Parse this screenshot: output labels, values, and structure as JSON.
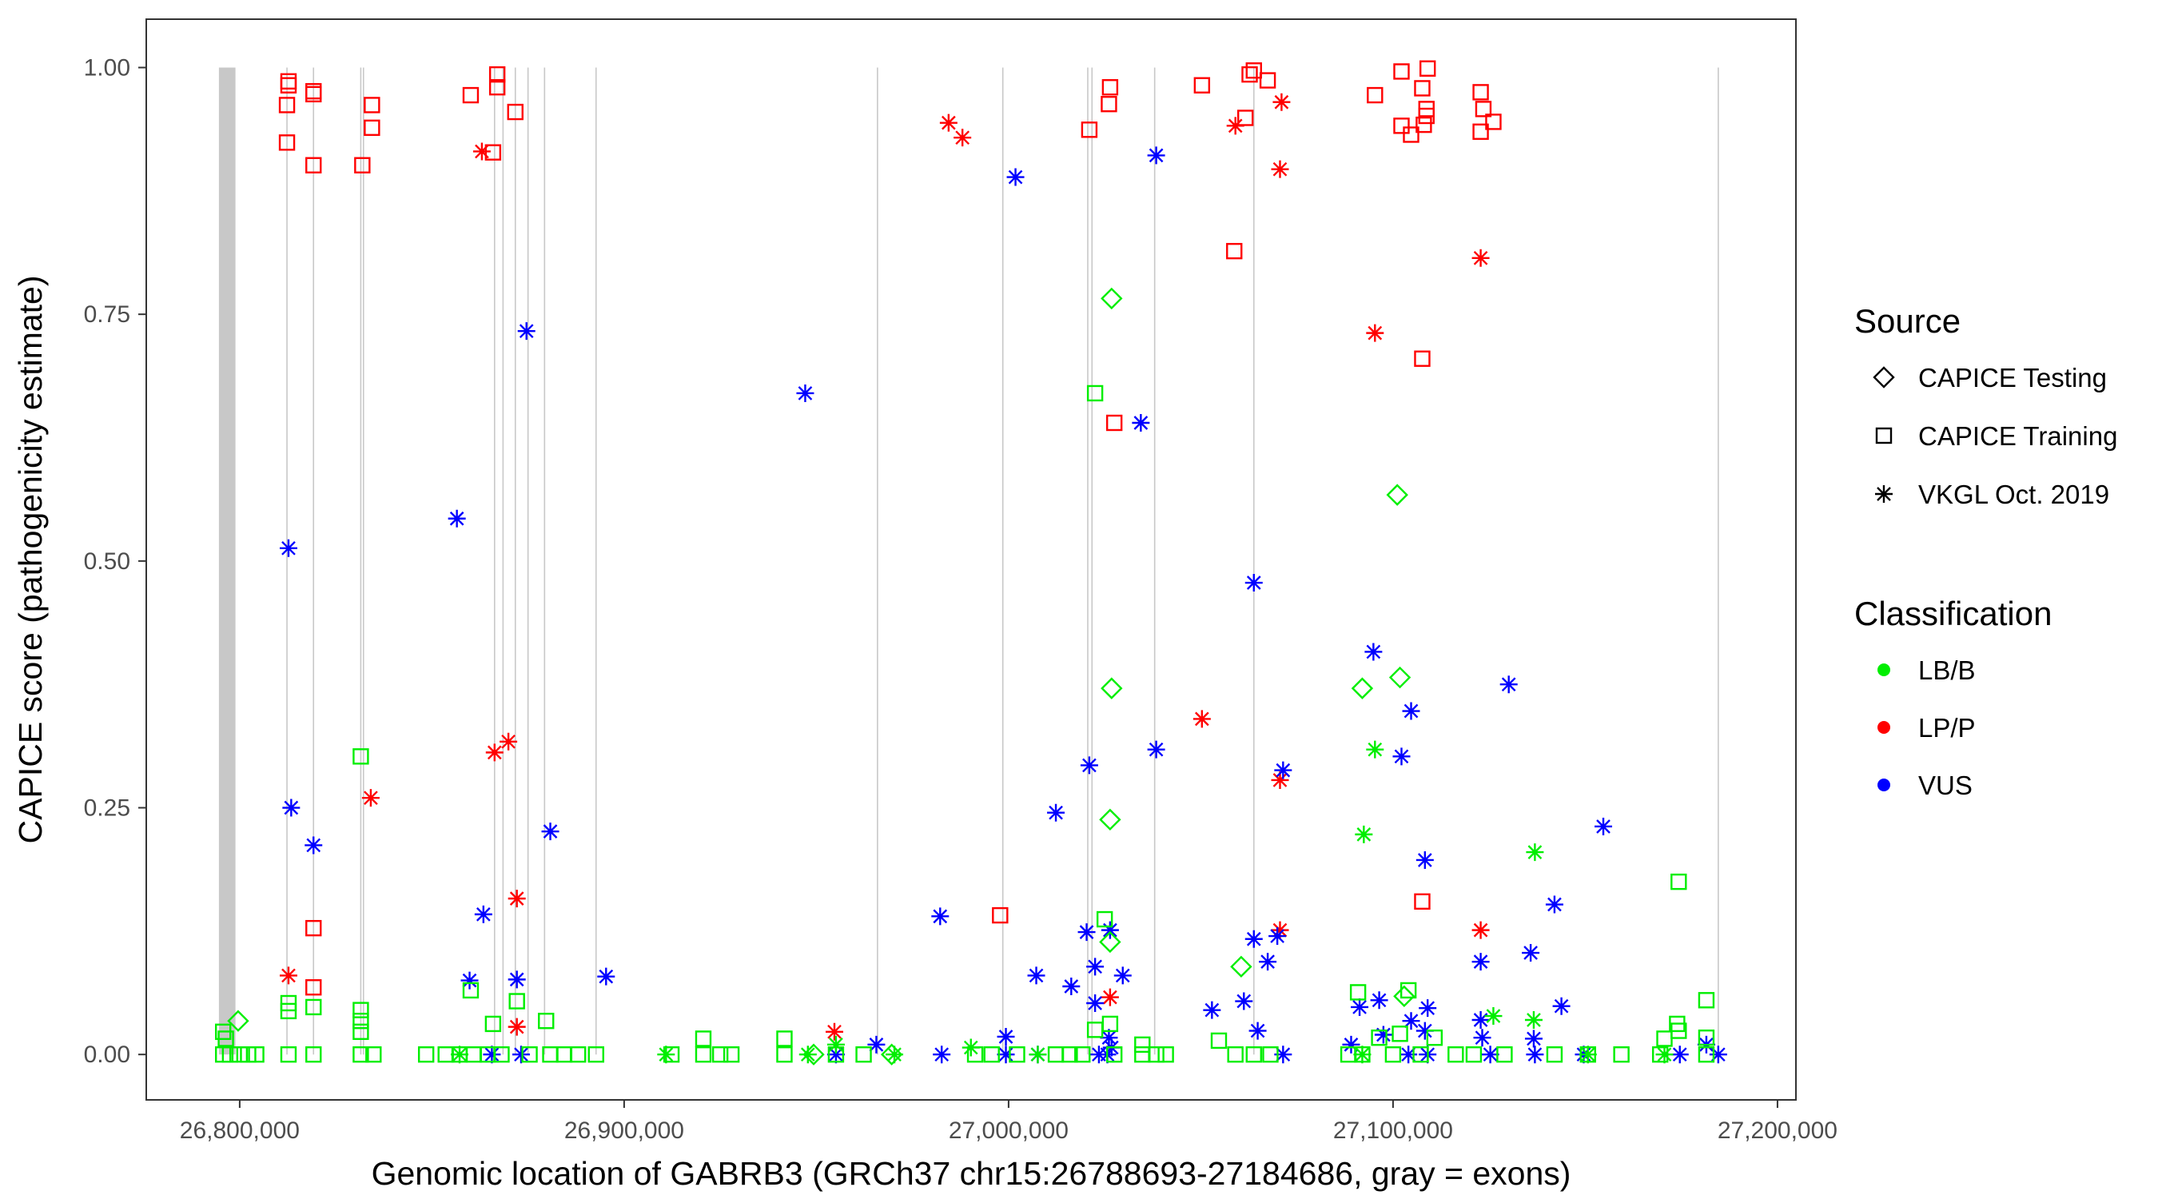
{
  "chart_data": {
    "type": "scatter",
    "title": "",
    "xlabel": "Genomic location of GABRB3 (GRCh37 chr15:26788693-27184686, gray = exons)",
    "ylabel": "CAPICE score (pathogenicity estimate)",
    "xlim": [
      26775700,
      27204800
    ],
    "ylim": [
      -0.046,
      1.049
    ],
    "x_ticks": [
      26800000,
      26900000,
      27000000,
      27100000,
      27200000
    ],
    "x_tick_labels": [
      "26,800,000",
      "26,900,000",
      "27,000,000",
      "27,100,000",
      "27,200,000"
    ],
    "y_ticks": [
      0,
      0.25,
      0.5,
      0.75,
      1.0
    ],
    "y_tick_labels": [
      "0.00",
      "0.25",
      "0.50",
      "0.75",
      "1.00"
    ],
    "grid": false,
    "legend_placement": "right",
    "legend": {
      "source_title": "Source",
      "sources": [
        {
          "label": "CAPICE Testing",
          "shape": "diamond"
        },
        {
          "label": "CAPICE Training",
          "shape": "square"
        },
        {
          "label": "VKGL Oct. 2019",
          "shape": "asterisk"
        }
      ],
      "class_title": "Classification",
      "classes": [
        {
          "label": "LB/B",
          "color": "#00ee00"
        },
        {
          "label": "LP/P",
          "color": "#ff0000"
        },
        {
          "label": "VUS",
          "color": "#0000ff"
        }
      ]
    },
    "exons": {
      "band": [
        26794600,
        26798900
      ],
      "lines": [
        26812300,
        26819200,
        26831500,
        26832200,
        26866300,
        26868500,
        26871700,
        26875000,
        26879300,
        26892700,
        26965900,
        26998500,
        27020600,
        27021700,
        27038000,
        27063800,
        27184600
      ],
      "color": "#c8c8c8"
    },
    "series": [
      {
        "source": "CAPICE Training",
        "class": "LP/P",
        "points": [
          [
            26812700,
            0.986
          ],
          [
            26812700,
            0.982
          ],
          [
            26812300,
            0.962
          ],
          [
            26812300,
            0.924
          ],
          [
            26819200,
            0.976
          ],
          [
            26819200,
            0.973
          ],
          [
            26819200,
            0.901
          ],
          [
            26831900,
            0.901
          ],
          [
            26834400,
            0.962
          ],
          [
            26834400,
            0.939
          ],
          [
            26860100,
            0.972
          ],
          [
            26867000,
            0.993
          ],
          [
            26867000,
            0.98
          ],
          [
            26871700,
            0.955
          ],
          [
            26865900,
            0.914
          ],
          [
            26819200,
            0.128
          ],
          [
            26819200,
            0.068
          ],
          [
            27026400,
            0.98
          ],
          [
            27026100,
            0.963
          ],
          [
            27021000,
            0.937
          ],
          [
            27027500,
            0.64
          ],
          [
            27050300,
            0.982
          ],
          [
            27062700,
            0.993
          ],
          [
            27063800,
            0.997
          ],
          [
            27067400,
            0.987
          ],
          [
            27061600,
            0.949
          ],
          [
            27058700,
            0.814
          ],
          [
            26997800,
            0.141
          ],
          [
            27095300,
            0.972
          ],
          [
            27102200,
            0.996
          ],
          [
            27109000,
            0.999
          ],
          [
            27107600,
            0.979
          ],
          [
            27108700,
            0.958
          ],
          [
            27108700,
            0.951
          ],
          [
            27108000,
            0.942
          ],
          [
            27104700,
            0.932
          ],
          [
            27102200,
            0.941
          ],
          [
            27122800,
            0.975
          ],
          [
            27123500,
            0.958
          ],
          [
            27126100,
            0.945
          ],
          [
            27122800,
            0.935
          ],
          [
            27107600,
            0.705
          ],
          [
            27107600,
            0.155
          ]
        ]
      },
      {
        "source": "VKGL Oct. 2019",
        "class": "LP/P",
        "points": [
          [
            26812700,
            0.08
          ],
          [
            26863000,
            0.915
          ],
          [
            26834100,
            0.26
          ],
          [
            26866300,
            0.306
          ],
          [
            26869900,
            0.317
          ],
          [
            26872100,
            0.158
          ],
          [
            26872100,
            0.028
          ],
          [
            26984400,
            0.944
          ],
          [
            26988000,
            0.929
          ],
          [
            26954700,
            0.023
          ],
          [
            27026400,
            0.058
          ],
          [
            27059000,
            0.941
          ],
          [
            27071000,
            0.965
          ],
          [
            27070600,
            0.897
          ],
          [
            27122800,
            0.807
          ],
          [
            27095300,
            0.731
          ],
          [
            27050300,
            0.34
          ],
          [
            27070600,
            0.278
          ],
          [
            27070600,
            0.126
          ],
          [
            27122800,
            0.126
          ]
        ]
      },
      {
        "source": "VKGL Oct. 2019",
        "class": "VUS",
        "points": [
          [
            26812700,
            0.513
          ],
          [
            26813400,
            0.25
          ],
          [
            26819200,
            0.212
          ],
          [
            26856500,
            0.543
          ],
          [
            26874600,
            0.733
          ],
          [
            26947100,
            0.67
          ],
          [
            26880800,
            0.226
          ],
          [
            26863400,
            0.142
          ],
          [
            26859800,
            0.075
          ],
          [
            26872100,
            0.076
          ],
          [
            26895300,
            0.079
          ],
          [
            27001800,
            0.889
          ],
          [
            27038400,
            0.911
          ],
          [
            27034400,
            0.64
          ],
          [
            27063800,
            0.478
          ],
          [
            27094900,
            0.408
          ],
          [
            27104700,
            0.348
          ],
          [
            27102200,
            0.302
          ],
          [
            27130100,
            0.375
          ],
          [
            27038400,
            0.309
          ],
          [
            27021000,
            0.293
          ],
          [
            27071400,
            0.288
          ],
          [
            27012300,
            0.245
          ],
          [
            27154700,
            0.231
          ],
          [
            27108300,
            0.197
          ],
          [
            27142000,
            0.152
          ],
          [
            26982200,
            0.14
          ],
          [
            27020300,
            0.124
          ],
          [
            27026400,
            0.126
          ],
          [
            27063800,
            0.117
          ],
          [
            27069900,
            0.12
          ],
          [
            27067400,
            0.094
          ],
          [
            27122800,
            0.094
          ],
          [
            27135800,
            0.103
          ],
          [
            27022500,
            0.089
          ],
          [
            27029700,
            0.08
          ],
          [
            27007200,
            0.08
          ],
          [
            27016300,
            0.069
          ],
          [
            27061200,
            0.054
          ],
          [
            27052900,
            0.045
          ],
          [
            27022500,
            0.052
          ],
          [
            27143800,
            0.049
          ],
          [
            27109000,
            0.047
          ],
          [
            27096400,
            0.055
          ],
          [
            27091300,
            0.048
          ],
          [
            27064800,
            0.024
          ],
          [
            27104700,
            0.034
          ],
          [
            27122800,
            0.035
          ],
          [
            27097500,
            0.02
          ],
          [
            27108300,
            0.024
          ],
          [
            27123200,
            0.017
          ],
          [
            27136600,
            0.016
          ],
          [
            26999300,
            0.018
          ],
          [
            26965600,
            0.01
          ],
          [
            26865600,
            0
          ],
          [
            26873200,
            0
          ],
          [
            26955100,
            0
          ],
          [
            26982600,
            0
          ],
          [
            26999300,
            0
          ],
          [
            27007600,
            0
          ],
          [
            27023500,
            0
          ],
          [
            27026800,
            0.007
          ],
          [
            27026100,
            0.017
          ],
          [
            27025700,
            0
          ],
          [
            27071400,
            0
          ],
          [
            27104000,
            0
          ],
          [
            27109000,
            0
          ],
          [
            27125300,
            0
          ],
          [
            27136900,
            0
          ],
          [
            27149600,
            0
          ],
          [
            27174600,
            0
          ],
          [
            27181500,
            0.01
          ],
          [
            27184600,
            0
          ],
          [
            27089100,
            0.01
          ]
        ]
      },
      {
        "source": "CAPICE Testing",
        "class": "LB/B",
        "points": [
          [
            27026800,
            0.766
          ],
          [
            27101100,
            0.567
          ],
          [
            27026800,
            0.371
          ],
          [
            27092000,
            0.371
          ],
          [
            27101800,
            0.382
          ],
          [
            27026400,
            0.238
          ],
          [
            27060500,
            0.089
          ],
          [
            27026400,
            0.114
          ],
          [
            26799600,
            0.034
          ],
          [
            27102900,
            0.059
          ],
          [
            26949300,
            0
          ],
          [
            26969600,
            0
          ]
        ]
      },
      {
        "source": "CAPICE Training",
        "class": "LB/B",
        "points": [
          [
            27022500,
            0.67
          ],
          [
            26831500,
            0.302
          ],
          [
            27174300,
            0.175
          ],
          [
            27025000,
            0.137
          ],
          [
            27181500,
            0.055
          ],
          [
            27173900,
            0.031
          ],
          [
            27174300,
            0.024
          ],
          [
            27090900,
            0.063
          ],
          [
            27104000,
            0.065
          ],
          [
            26860100,
            0.065
          ],
          [
            26872100,
            0.054
          ],
          [
            26879700,
            0.034
          ],
          [
            26865900,
            0.031
          ],
          [
            26812700,
            0.052
          ],
          [
            26812700,
            0.044
          ],
          [
            26819200,
            0.048
          ],
          [
            26831500,
            0.045
          ],
          [
            26831500,
            0.034
          ],
          [
            26831500,
            0.023
          ],
          [
            26795700,
            0.023
          ],
          [
            26796400,
            0.016
          ],
          [
            27022500,
            0.025
          ],
          [
            27026400,
            0.031
          ],
          [
            27054700,
            0.014
          ],
          [
            27034800,
            0.01
          ],
          [
            26920600,
            0.016
          ],
          [
            26941700,
            0.016
          ],
          [
            27170600,
            0.016
          ],
          [
            27181500,
            0.017
          ],
          [
            27096400,
            0.017
          ],
          [
            27101800,
            0.021
          ],
          [
            27110800,
            0.017
          ],
          [
            26795700,
            0
          ],
          [
            26797500,
            0
          ],
          [
            26800000,
            0
          ],
          [
            26802200,
            0
          ],
          [
            26804300,
            0
          ],
          [
            26812700,
            0
          ],
          [
            26819200,
            0
          ],
          [
            26831500,
            0
          ],
          [
            26834800,
            0
          ],
          [
            26848500,
            0
          ],
          [
            26853600,
            0
          ],
          [
            26857200,
            0
          ],
          [
            26860900,
            0
          ],
          [
            26864500,
            0
          ],
          [
            26868100,
            0
          ],
          [
            26875400,
            0
          ],
          [
            26880800,
            0
          ],
          [
            26884400,
            0
          ],
          [
            26888000,
            0
          ],
          [
            26892700,
            0
          ],
          [
            26912300,
            0
          ],
          [
            26920600,
            0
          ],
          [
            26925000,
            0
          ],
          [
            26927900,
            0
          ],
          [
            26941700,
            0
          ],
          [
            26955100,
            0
          ],
          [
            26962300,
            0
          ],
          [
            26991300,
            0
          ],
          [
            26995600,
            0
          ],
          [
            27002200,
            0
          ],
          [
            27012300,
            0
          ],
          [
            27015900,
            0
          ],
          [
            27019200,
            0
          ],
          [
            27027500,
            0
          ],
          [
            27034800,
            0
          ],
          [
            27038400,
            0
          ],
          [
            27040900,
            0
          ],
          [
            27059000,
            0
          ],
          [
            27063800,
            0
          ],
          [
            27068100,
            0
          ],
          [
            27088400,
            0
          ],
          [
            27092000,
            0
          ],
          [
            27100000,
            0
          ],
          [
            27107200,
            0
          ],
          [
            27116300,
            0
          ],
          [
            27121000,
            0
          ],
          [
            27129000,
            0
          ],
          [
            27142000,
            0
          ],
          [
            27150700,
            0
          ],
          [
            27159400,
            0
          ],
          [
            27169500,
            0
          ],
          [
            27181500,
            0
          ]
        ]
      },
      {
        "source": "VKGL Oct. 2019",
        "class": "LB/B",
        "points": [
          [
            27092400,
            0.223
          ],
          [
            27095300,
            0.309
          ],
          [
            27136900,
            0.205
          ],
          [
            27136600,
            0.035
          ],
          [
            27126100,
            0.039
          ],
          [
            26955100,
            0.01
          ],
          [
            26947800,
            0
          ],
          [
            26970300,
            0
          ],
          [
            26990200,
            0.007
          ],
          [
            27007600,
            0
          ],
          [
            27092000,
            0
          ],
          [
            27170600,
            0
          ],
          [
            27150700,
            0
          ],
          [
            26910900,
            0
          ],
          [
            26857200,
            0
          ]
        ]
      }
    ]
  }
}
